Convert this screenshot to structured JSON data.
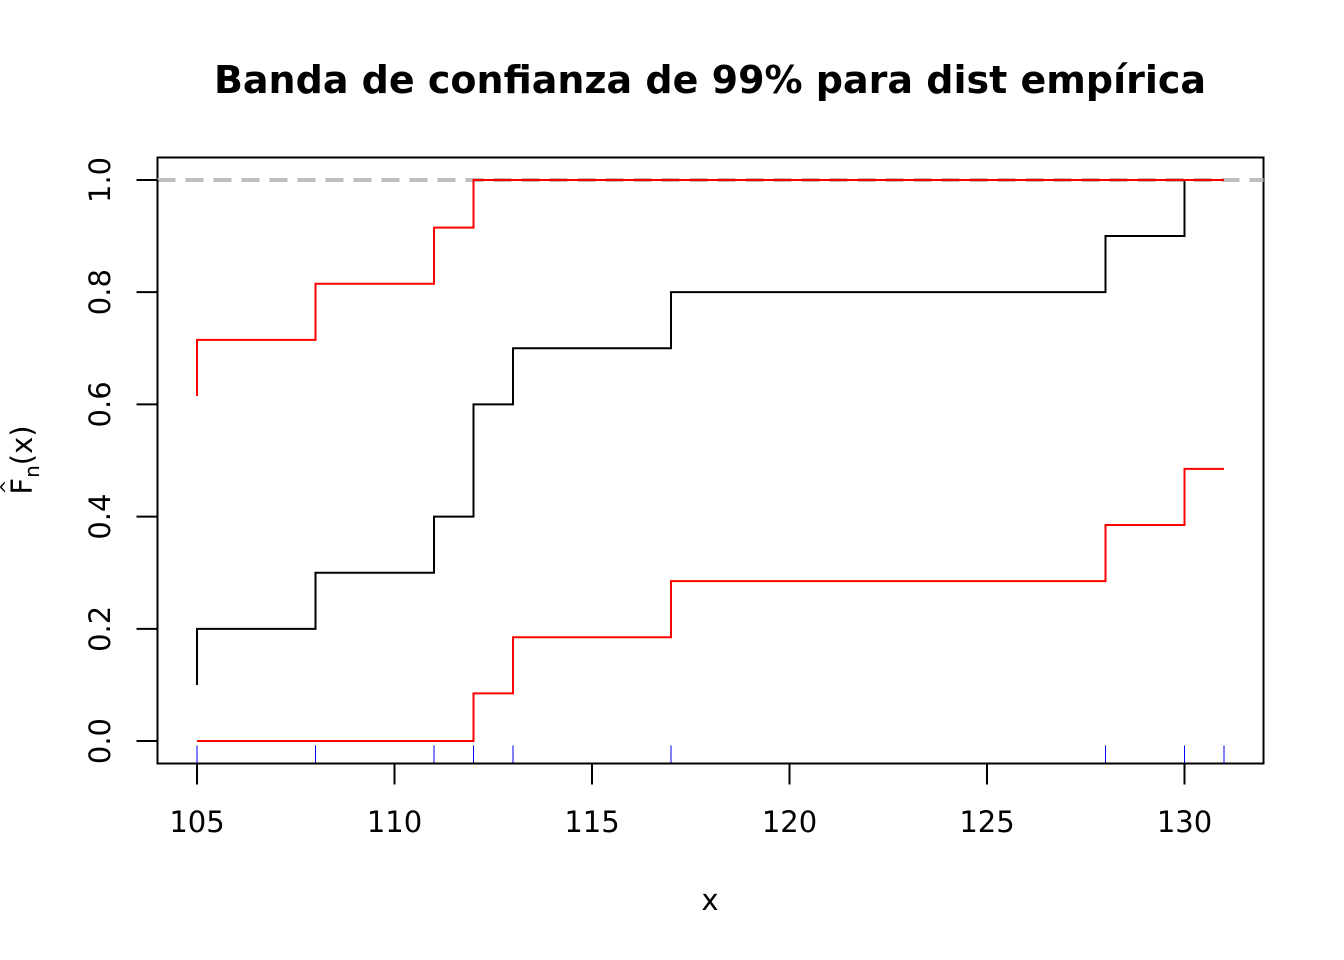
{
  "chart_data": {
    "type": "line",
    "step": true,
    "title": "Banda de confianza de 99% para dist empírica",
    "xlabel": "x",
    "ylabel": {
      "main": "F",
      "hat": "^",
      "sub": "n",
      "arg": "(x)"
    },
    "xlim": [
      104,
      132
    ],
    "ylim": [
      -0.04,
      1.04
    ],
    "xticks": [
      105,
      110,
      115,
      120,
      125,
      130
    ],
    "xtick_labels": [
      "105",
      "110",
      "115",
      "120",
      "125",
      "130"
    ],
    "yticks": [
      0,
      0.2,
      0.4,
      0.6,
      0.8,
      1.0
    ],
    "ytick_labels": [
      "0.0",
      "0.2",
      "0.4",
      "0.6",
      "0.8",
      "1.0"
    ],
    "grid": false,
    "reference_line": {
      "y": 1.0,
      "style": "dashed",
      "color": "#bebebe"
    },
    "rug": {
      "x": [
        105,
        108,
        111,
        112,
        113,
        117,
        128,
        130,
        131
      ],
      "color": "#0000ff"
    },
    "series": [
      {
        "role": "empirical-cdf",
        "color": "#000000",
        "start": [
          105,
          0.1
        ],
        "x": [
          105,
          108,
          111,
          112,
          113,
          117,
          128,
          130
        ],
        "y": [
          0.2,
          0.3,
          0.4,
          0.6,
          0.7,
          0.8,
          0.9,
          1.0
        ]
      },
      {
        "role": "upper-band",
        "color": "#ff0000",
        "start": [
          105,
          0.615
        ],
        "x": [
          105,
          108,
          111,
          112,
          131
        ],
        "y": [
          0.715,
          0.815,
          0.915,
          1.0,
          1.0
        ]
      },
      {
        "role": "lower-band",
        "color": "#ff0000",
        "start": [
          105,
          0.0
        ],
        "x": [
          105,
          112,
          113,
          117,
          128,
          130,
          131
        ],
        "y": [
          0.0,
          0.085,
          0.185,
          0.285,
          0.385,
          0.485,
          0.485
        ]
      }
    ]
  }
}
